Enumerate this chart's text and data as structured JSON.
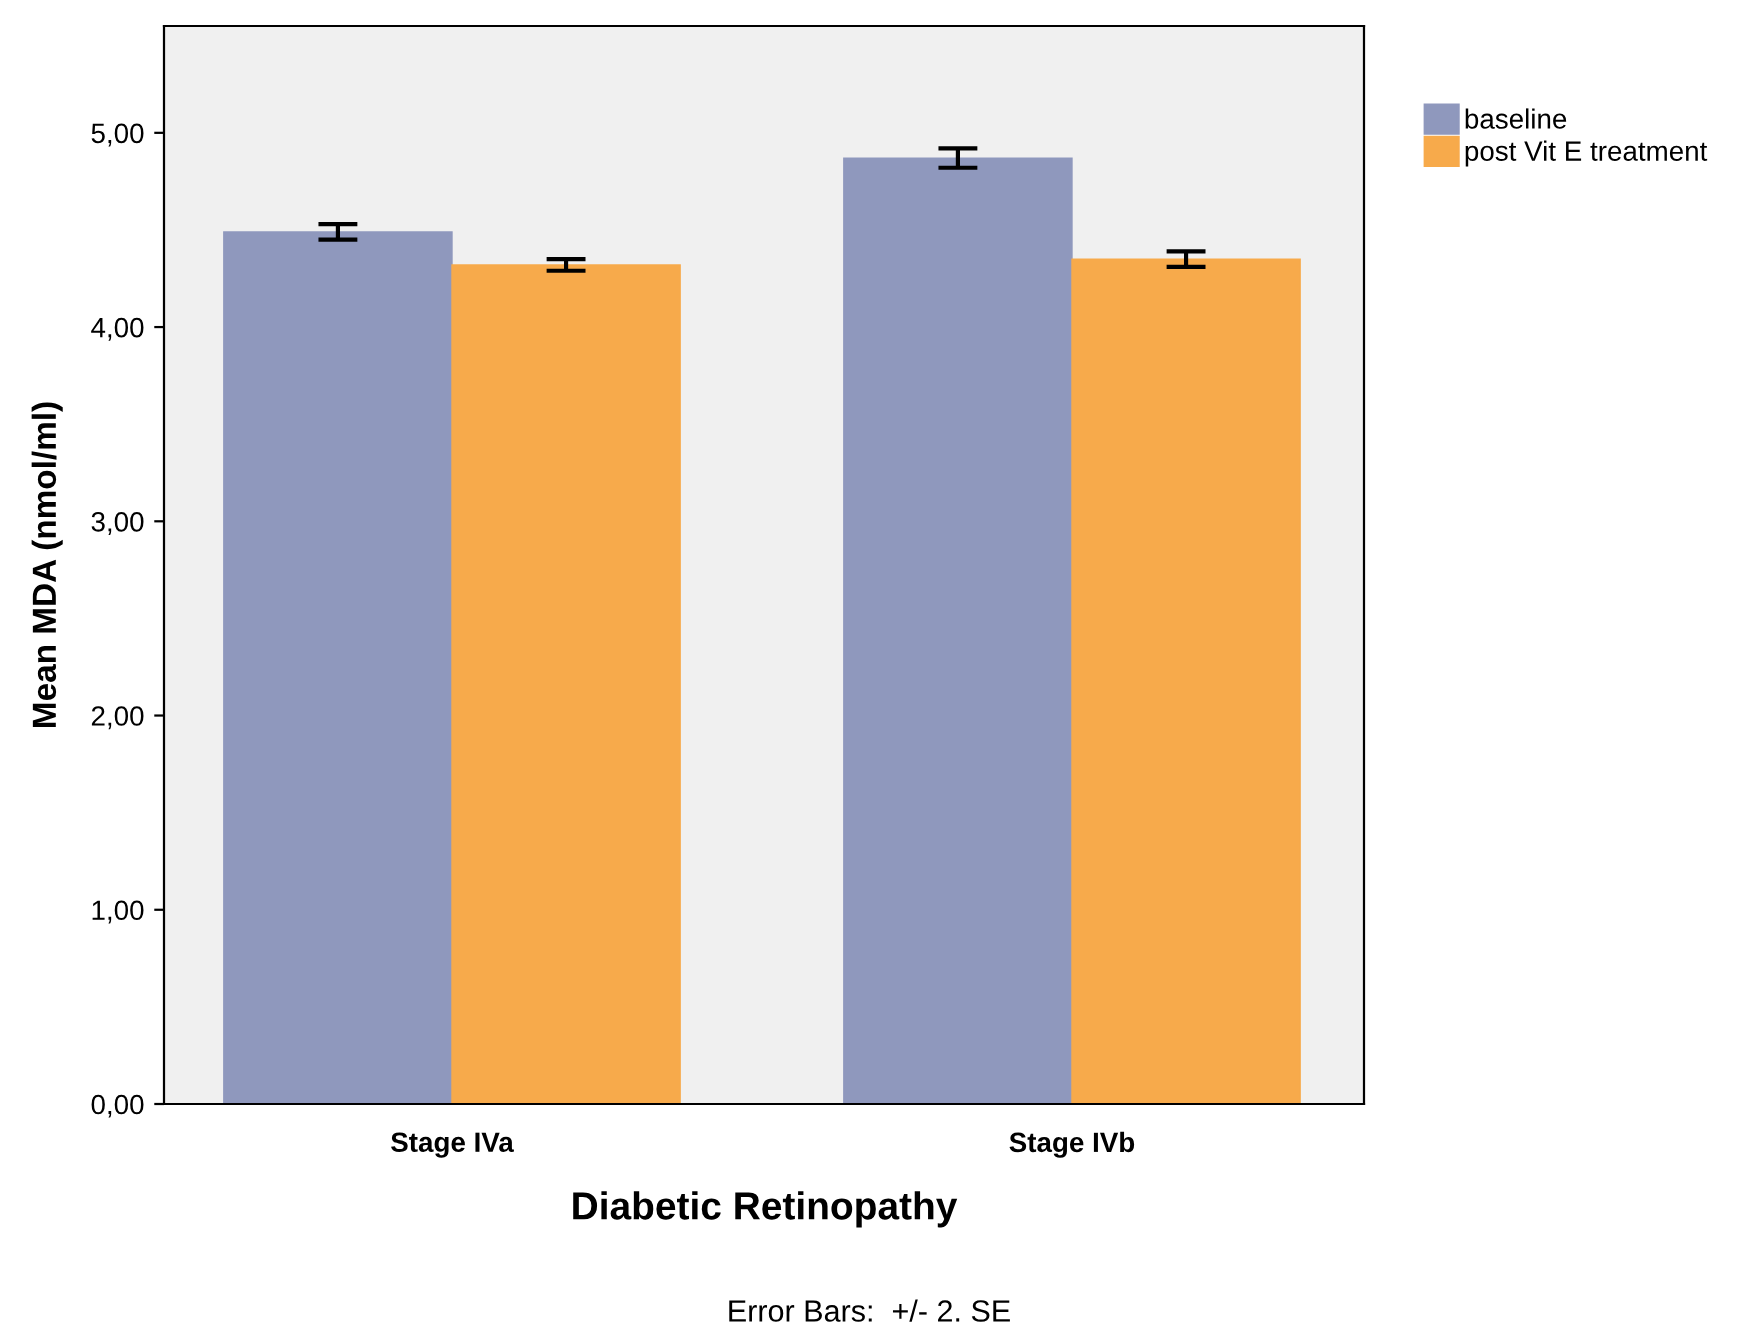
{
  "chart_data": {
    "type": "bar",
    "xlabel": "Diabetic Retinopathy",
    "ylabel": "Mean MDA (nmol/ml)",
    "categories": [
      "Stage IVa",
      "Stage IVb"
    ],
    "series": [
      {
        "name": "baseline",
        "color": "#8f98bd",
        "values": [
          4.49,
          4.87
        ],
        "errors": [
          0.04,
          0.05
        ]
      },
      {
        "name": "post Vit E treatment",
        "color": "#f7aa4b",
        "values": [
          4.32,
          4.35
        ],
        "errors": [
          0.03,
          0.04
        ]
      }
    ],
    "ylim": [
      0,
      5.55
    ],
    "yticks": [
      {
        "value": 0,
        "label": "0,00"
      },
      {
        "value": 1,
        "label": "1,00"
      },
      {
        "value": 2,
        "label": "2,00"
      },
      {
        "value": 3,
        "label": "3,00"
      },
      {
        "value": 4,
        "label": "4,00"
      },
      {
        "value": 5,
        "label": "5,00"
      }
    ],
    "grid": false,
    "legend": "top right",
    "annotations": [
      "Error Bars:  +/- 2. SE"
    ]
  }
}
